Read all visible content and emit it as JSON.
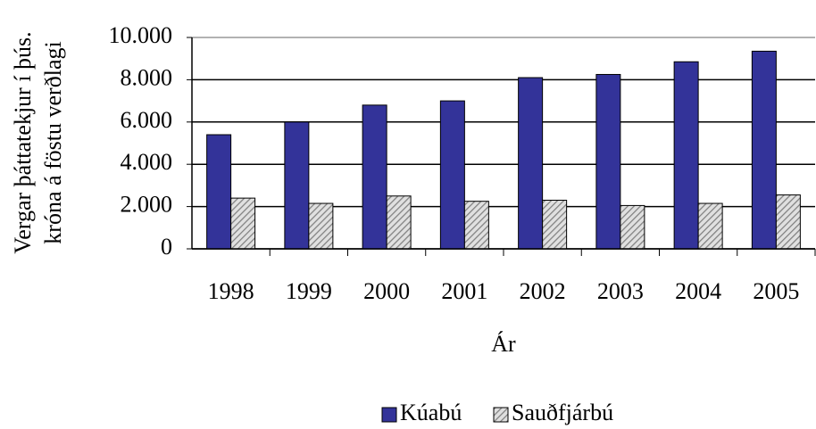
{
  "chart_data": {
    "type": "bar",
    "ylabel": [
      "Vergar þáttatekjur í þús.",
      "króna á föstu verðlagi"
    ],
    "xlabel": "Ár",
    "categories": [
      "1998",
      "1999",
      "2000",
      "2001",
      "2002",
      "2003",
      "2004",
      "2005"
    ],
    "series": [
      {
        "name": "Kúabú",
        "color": "#333399",
        "values": [
          5400,
          6000,
          6800,
          7000,
          8100,
          8250,
          8850,
          9350
        ]
      },
      {
        "name": "Sauðfjárbú",
        "color": "#c0c0c0",
        "pattern": "hatch",
        "values": [
          2400,
          2150,
          2500,
          2250,
          2300,
          2050,
          2150,
          2550
        ]
      }
    ],
    "ylim": [
      0,
      10000
    ],
    "yticks": [
      0,
      {
        "value": 2000,
        "label": "2.000"
      },
      {
        "value": 4000,
        "label": "4.000"
      },
      {
        "value": 6000,
        "label": "6.000"
      },
      {
        "value": 8000,
        "label": "8.000"
      },
      {
        "value": 10000,
        "label": "10.000"
      }
    ],
    "grid": true,
    "legend": "bottom"
  }
}
